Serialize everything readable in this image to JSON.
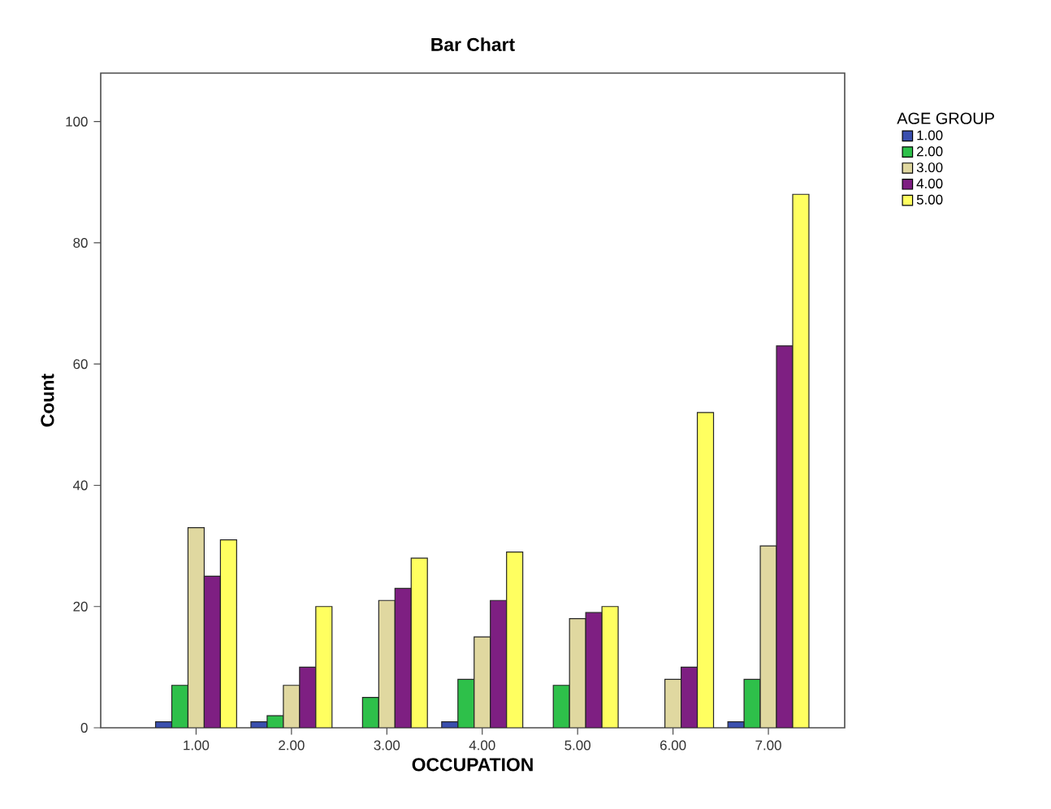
{
  "chart_data": {
    "type": "bar",
    "title": "Bar Chart",
    "xlabel": "OCCUPATION",
    "ylabel": "Count",
    "legend_title": "AGE GROUP",
    "categories": [
      "1.00",
      "2.00",
      "3.00",
      "4.00",
      "5.00",
      "6.00",
      "7.00"
    ],
    "series": [
      {
        "name": "1.00",
        "color": "#3a4fae",
        "values": [
          1,
          1,
          null,
          1,
          null,
          null,
          1
        ]
      },
      {
        "name": "2.00",
        "color": "#2ec04a",
        "values": [
          7,
          2,
          5,
          8,
          7,
          null,
          8
        ]
      },
      {
        "name": "3.00",
        "color": "#e0d8a0",
        "values": [
          33,
          7,
          21,
          15,
          18,
          8,
          30
        ]
      },
      {
        "name": "4.00",
        "color": "#7e1f82",
        "values": [
          25,
          10,
          23,
          21,
          19,
          10,
          63
        ]
      },
      {
        "name": "5.00",
        "color": "#ffff60",
        "values": [
          31,
          20,
          28,
          29,
          20,
          52,
          88
        ]
      }
    ],
    "ylim": [
      0,
      108
    ],
    "yticks": [
      0,
      20,
      40,
      60,
      80,
      100
    ],
    "grid": false,
    "legend": "right"
  }
}
